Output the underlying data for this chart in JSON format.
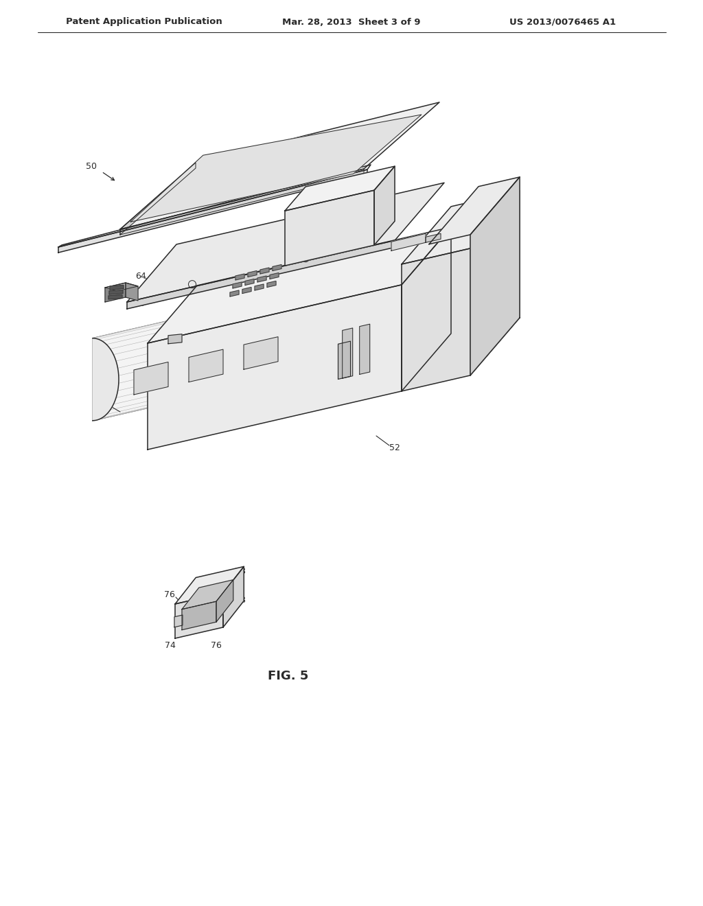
{
  "title": "FIG. 5",
  "header_left": "Patent Application Publication",
  "header_center": "Mar. 28, 2013  Sheet 3 of 9",
  "header_right": "US 2013/0076465 A1",
  "background_color": "#ffffff",
  "line_color": "#2a2a2a",
  "gray_fill": "#e8e8e8",
  "light_fill": "#f4f4f4",
  "dark_fill": "#cccccc",
  "header_fontsize": 9.5,
  "annotation_fontsize": 9,
  "title_fontsize": 13
}
